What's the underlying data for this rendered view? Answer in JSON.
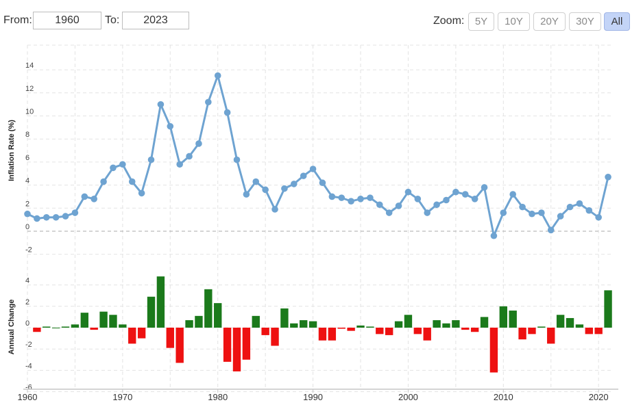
{
  "range": {
    "from_label": "From:",
    "from_value": "1960",
    "to_label": "To:",
    "to_value": "2023"
  },
  "zoom": {
    "label": "Zoom:",
    "buttons": [
      "5Y",
      "10Y",
      "20Y",
      "30Y",
      "All"
    ],
    "active": "All"
  },
  "colors": {
    "line": "#6ea3d1",
    "positive": "#1b7a1b",
    "negative": "#ee1111",
    "grid": "#e3e3e3"
  },
  "chart_data": [
    {
      "type": "line",
      "ylabel": "Inflation Rate (%)",
      "ylim": [
        -2,
        14
      ],
      "yticks": [
        -2,
        0,
        2,
        4,
        6,
        8,
        10,
        12,
        14
      ],
      "x": [
        1960,
        1961,
        1962,
        1963,
        1964,
        1965,
        1966,
        1967,
        1968,
        1969,
        1970,
        1971,
        1972,
        1973,
        1974,
        1975,
        1976,
        1977,
        1978,
        1979,
        1980,
        1981,
        1982,
        1983,
        1984,
        1985,
        1986,
        1987,
        1988,
        1989,
        1990,
        1991,
        1992,
        1993,
        1994,
        1995,
        1996,
        1997,
        1998,
        1999,
        2000,
        2001,
        2002,
        2003,
        2004,
        2005,
        2006,
        2007,
        2008,
        2009,
        2010,
        2011,
        2012,
        2013,
        2014,
        2015,
        2016,
        2017,
        2018,
        2019,
        2020,
        2021
      ],
      "values": [
        1.5,
        1.1,
        1.2,
        1.2,
        1.3,
        1.6,
        3.0,
        2.8,
        4.3,
        5.5,
        5.8,
        4.3,
        3.3,
        6.2,
        11.0,
        9.1,
        5.8,
        6.5,
        7.6,
        11.2,
        13.5,
        10.3,
        6.2,
        3.2,
        4.3,
        3.6,
        1.9,
        3.7,
        4.1,
        4.8,
        5.4,
        4.2,
        3.0,
        2.9,
        2.6,
        2.8,
        2.9,
        2.3,
        1.6,
        2.2,
        3.4,
        2.8,
        1.6,
        2.3,
        2.7,
        3.4,
        3.2,
        2.8,
        3.8,
        -0.4,
        1.6,
        3.2,
        2.1,
        1.5,
        1.6,
        0.1,
        1.3,
        2.1,
        2.4,
        1.8,
        1.2,
        4.7
      ],
      "xticks": [
        1960,
        1970,
        1980,
        1990,
        2000,
        2010,
        2020
      ]
    },
    {
      "type": "bar",
      "ylabel": "Annual Change",
      "ylim": [
        -6,
        6
      ],
      "yticks": [
        -6,
        -4,
        -2,
        0,
        2,
        4
      ],
      "x": [
        1960,
        1961,
        1962,
        1963,
        1964,
        1965,
        1966,
        1967,
        1968,
        1969,
        1970,
        1971,
        1972,
        1973,
        1974,
        1975,
        1976,
        1977,
        1978,
        1979,
        1980,
        1981,
        1982,
        1983,
        1984,
        1985,
        1986,
        1987,
        1988,
        1989,
        1990,
        1991,
        1992,
        1993,
        1994,
        1995,
        1996,
        1997,
        1998,
        1999,
        2000,
        2001,
        2002,
        2003,
        2004,
        2005,
        2006,
        2007,
        2008,
        2009,
        2010,
        2011,
        2012,
        2013,
        2014,
        2015,
        2016,
        2017,
        2018,
        2019,
        2020,
        2021
      ],
      "values": [
        null,
        -0.4,
        0.1,
        0.0,
        0.1,
        0.3,
        1.4,
        -0.2,
        1.5,
        1.2,
        0.3,
        -1.5,
        -1.0,
        2.9,
        4.8,
        -1.9,
        -3.3,
        0.7,
        1.1,
        3.6,
        2.3,
        -3.2,
        -4.1,
        -3.0,
        1.1,
        -0.7,
        -1.7,
        1.8,
        0.4,
        0.7,
        0.6,
        -1.2,
        -1.2,
        -0.1,
        -0.3,
        0.2,
        0.1,
        -0.6,
        -0.7,
        0.6,
        1.2,
        -0.6,
        -1.2,
        0.7,
        0.4,
        0.7,
        -0.2,
        -0.4,
        1.0,
        -4.2,
        2.0,
        1.6,
        -1.1,
        -0.6,
        0.1,
        -1.5,
        1.2,
        0.9,
        0.3,
        -0.6,
        -0.6,
        3.5
      ]
    }
  ]
}
